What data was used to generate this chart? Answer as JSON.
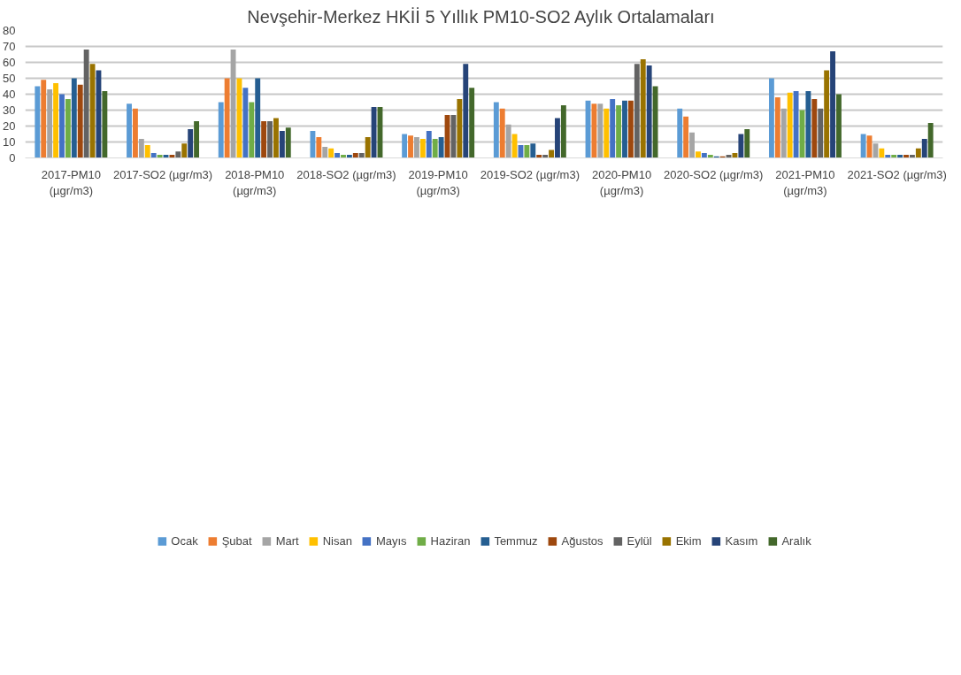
{
  "chart_data": {
    "type": "bar",
    "title": "Nevşehir-Merkez  HKİİ 5 Yıllık PM10-SO2 Aylık Ortalamaları",
    "categories": [
      "2017-PM10\n(µgr/m3)",
      "2017-SO2 (µgr/m3)",
      "2018-PM10\n(µgr/m3)",
      "2018-SO2 (µgr/m3)",
      "2019-PM10\n(µgr/m3)",
      "2019-SO2 (µgr/m3)",
      "2020-PM10\n(µgr/m3)",
      "2020-SO2 (µgr/m3)",
      "2021-PM10\n(µgr/m3)",
      "2021-SO2 (µgr/m3)"
    ],
    "series": [
      {
        "name": "Ocak",
        "color": "#5b9bd5",
        "values": [
          45,
          34,
          35,
          17,
          15,
          35,
          36,
          31,
          50,
          15
        ]
      },
      {
        "name": "Şubat",
        "color": "#ed7d31",
        "values": [
          49,
          31,
          50,
          13,
          14,
          31,
          34,
          26,
          38,
          14
        ]
      },
      {
        "name": "Mart",
        "color": "#a5a5a5",
        "values": [
          43,
          12,
          68,
          7,
          13,
          21,
          34,
          16,
          31,
          9
        ]
      },
      {
        "name": "Nisan",
        "color": "#ffc000",
        "values": [
          47,
          8,
          50,
          6,
          12,
          15,
          31,
          4,
          41,
          6
        ]
      },
      {
        "name": "Mayıs",
        "color": "#4472c4",
        "values": [
          40,
          3,
          44,
          3,
          17,
          8,
          37,
          3,
          42,
          2
        ]
      },
      {
        "name": "Haziran",
        "color": "#70ad47",
        "values": [
          37,
          2,
          35,
          2,
          12,
          8,
          33,
          2,
          30,
          2
        ]
      },
      {
        "name": "Temmuz",
        "color": "#255e91",
        "values": [
          50,
          2,
          50,
          2,
          13,
          9,
          36,
          1,
          42,
          2
        ]
      },
      {
        "name": "Ağustos",
        "color": "#9e480e",
        "values": [
          46,
          2,
          23,
          3,
          27,
          2,
          36,
          1,
          37,
          2
        ]
      },
      {
        "name": "Eylül",
        "color": "#636363",
        "values": [
          68,
          4,
          23,
          3,
          27,
          2,
          59,
          2,
          31,
          2
        ]
      },
      {
        "name": "Ekim",
        "color": "#997300",
        "values": [
          59,
          9,
          25,
          13,
          37,
          5,
          62,
          3,
          55,
          6
        ]
      },
      {
        "name": "Kasım",
        "color": "#264478",
        "values": [
          55,
          18,
          17,
          32,
          59,
          25,
          58,
          15,
          67,
          12
        ]
      },
      {
        "name": "Aralık",
        "color": "#43682b",
        "values": [
          42,
          23,
          19,
          32,
          44,
          33,
          45,
          18,
          40,
          22
        ]
      }
    ],
    "ylim": [
      0,
      80
    ],
    "yticks": [
      0,
      10,
      20,
      30,
      40,
      50,
      60,
      70,
      80
    ],
    "grid": "y",
    "legend": "bottom"
  }
}
